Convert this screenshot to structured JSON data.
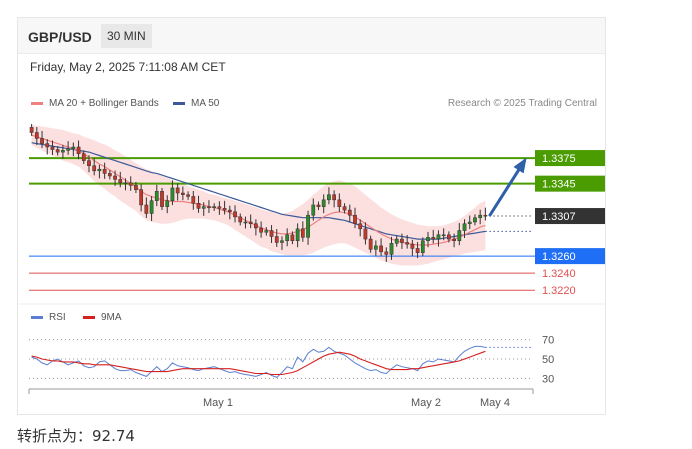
{
  "header": {
    "symbol": "GBP/USD",
    "timeframe": "30 MIN",
    "datetime": "Friday, May 2, 2025 7:11:08 AM CET",
    "credit": "Research © 2025 Trading Central"
  },
  "legend": {
    "ma20_label": "MA 20 + Bollinger Bands",
    "ma50_label": "MA 50",
    "rsi_label": "RSI",
    "rsi9_label": "9MA"
  },
  "colors": {
    "ma20": "#f08080",
    "ma50": "#3c5a99",
    "bands": "#fbd9d9",
    "candle_up": "#2a8c2a",
    "candle_down": "#c0392b",
    "resistance": "#4a9c00",
    "support": "#1e6ff5",
    "support_minor": "#e05050",
    "current": "#333333",
    "rsi": "#5b7fd0",
    "rsi9": "#d62020"
  },
  "footer": "转折点为：92.74",
  "chart_data": {
    "type": "candlestick",
    "price_axis_range": [
      1.3205,
      1.3422
    ],
    "levels": [
      {
        "value": 1.3375,
        "label": "1.3375",
        "kind": "resistance"
      },
      {
        "value": 1.3345,
        "label": "1.3345",
        "kind": "resistance"
      },
      {
        "value": 1.3307,
        "label": "1.3307",
        "kind": "current"
      },
      {
        "value": 1.326,
        "label": "1.3260",
        "kind": "support"
      },
      {
        "value": 1.324,
        "label": "1.3240",
        "kind": "support_minor"
      },
      {
        "value": 1.322,
        "label": "1.3220",
        "kind": "support_minor"
      }
    ],
    "x_ticks": [
      "May 1",
      "May 2",
      "May 4"
    ],
    "close": [
      1.3405,
      1.3398,
      1.3392,
      1.3388,
      1.3385,
      1.3382,
      1.3384,
      1.3386,
      1.3388,
      1.338,
      1.3372,
      1.3366,
      1.336,
      1.3362,
      1.3357,
      1.3354,
      1.335,
      1.3346,
      1.3346,
      1.3343,
      1.3338,
      1.332,
      1.331,
      1.3325,
      1.3336,
      1.3318,
      1.3325,
      1.334,
      1.3334,
      1.3332,
      1.333,
      1.3322,
      1.3316,
      1.3318,
      1.3317,
      1.3318,
      1.3316,
      1.3314,
      1.3312,
      1.3306,
      1.33,
      1.33,
      1.3298,
      1.3293,
      1.3288,
      1.329,
      1.3283,
      1.3276,
      1.3278,
      1.3285,
      1.3278,
      1.3292,
      1.3282,
      1.3308,
      1.332,
      1.3318,
      1.3326,
      1.3332,
      1.3326,
      1.3318,
      1.3314,
      1.3308,
      1.3298,
      1.3292,
      1.328,
      1.3268,
      1.3272,
      1.3265,
      1.3262,
      1.3275,
      1.328,
      1.3276,
      1.3274,
      1.3269,
      1.3264,
      1.3278,
      1.3282,
      1.328,
      1.3285,
      1.3285,
      1.328,
      1.3278,
      1.329,
      1.3298,
      1.33,
      1.3305,
      1.3308,
      1.3307
    ],
    "ma20": [
      1.3402,
      1.34,
      1.3398,
      1.3396,
      1.3394,
      1.3392,
      1.339,
      1.3388,
      1.3386,
      1.3384,
      1.338,
      1.3376,
      1.3372,
      1.3368,
      1.3365,
      1.3361,
      1.3357,
      1.3353,
      1.3349,
      1.3345,
      1.3341,
      1.3336,
      1.3332,
      1.333,
      1.3328,
      1.3326,
      1.3325,
      1.3324,
      1.3324,
      1.3324,
      1.3323,
      1.3322,
      1.3321,
      1.332,
      1.3318,
      1.3317,
      1.3315,
      1.3313,
      1.3311,
      1.3308,
      1.3305,
      1.3302,
      1.3299,
      1.3296,
      1.3293,
      1.3291,
      1.3289,
      1.3287,
      1.3286,
      1.3286,
      1.3287,
      1.3289,
      1.3291,
      1.3294,
      1.3298,
      1.3302,
      1.3306,
      1.3309,
      1.3311,
      1.3312,
      1.3311,
      1.3309,
      1.3306,
      1.3302,
      1.3298,
      1.3294,
      1.329,
      1.3286,
      1.3283,
      1.328,
      1.3278,
      1.3276,
      1.3275,
      1.3274,
      1.3273,
      1.3273,
      1.3273,
      1.3274,
      1.3275,
      1.3276,
      1.3278,
      1.328,
      1.3282,
      1.3285,
      1.3288,
      1.3291,
      1.3294,
      1.3296
    ],
    "ma50": [
      1.3393,
      1.3392,
      1.3391,
      1.339,
      1.3389,
      1.3388,
      1.3387,
      1.3386,
      1.3385,
      1.3384,
      1.3383,
      1.3382,
      1.338,
      1.3378,
      1.3376,
      1.3374,
      1.3372,
      1.337,
      1.3368,
      1.3366,
      1.3364,
      1.3362,
      1.336,
      1.3358,
      1.3357,
      1.3355,
      1.3353,
      1.3351,
      1.3349,
      1.3347,
      1.3345,
      1.3343,
      1.3341,
      1.3339,
      1.3337,
      1.3335,
      1.3333,
      1.3331,
      1.3329,
      1.3327,
      1.3325,
      1.3323,
      1.3321,
      1.3319,
      1.3317,
      1.3315,
      1.3313,
      1.3311,
      1.3309,
      1.3308,
      1.3307,
      1.3306,
      1.3305,
      1.3305,
      1.3305,
      1.3305,
      1.3305,
      1.3305,
      1.3304,
      1.3303,
      1.3302,
      1.33,
      1.3298,
      1.3296,
      1.3294,
      1.3292,
      1.329,
      1.3288,
      1.3286,
      1.3285,
      1.3284,
      1.3283,
      1.3282,
      1.3281,
      1.328,
      1.328,
      1.328,
      1.328,
      1.328,
      1.3281,
      1.3282,
      1.3283,
      1.3284,
      1.3285,
      1.3286,
      1.3287,
      1.3288,
      1.3289
    ],
    "band_width": [
      0.0012,
      0.0013,
      0.0014,
      0.0015,
      0.0016,
      0.0017,
      0.0018,
      0.0018,
      0.0018,
      0.0019,
      0.002,
      0.0022,
      0.0024,
      0.0025,
      0.0026,
      0.0027,
      0.0027,
      0.0028,
      0.0028,
      0.0028,
      0.0028,
      0.0029,
      0.003,
      0.003,
      0.0029,
      0.0028,
      0.0027,
      0.0025,
      0.0023,
      0.0021,
      0.0019,
      0.0018,
      0.0017,
      0.0016,
      0.0015,
      0.0015,
      0.0015,
      0.0015,
      0.0016,
      0.0017,
      0.0018,
      0.0019,
      0.002,
      0.0021,
      0.0022,
      0.0022,
      0.0023,
      0.0023,
      0.0024,
      0.0025,
      0.0026,
      0.0028,
      0.003,
      0.0032,
      0.0034,
      0.0035,
      0.0036,
      0.0037,
      0.0037,
      0.0037,
      0.0036,
      0.0036,
      0.0036,
      0.0035,
      0.0034,
      0.0033,
      0.0032,
      0.0031,
      0.003,
      0.0029,
      0.0028,
      0.0027,
      0.0026,
      0.0025,
      0.0024,
      0.0023,
      0.0022,
      0.0021,
      0.002,
      0.002,
      0.002,
      0.002,
      0.0021,
      0.0022,
      0.0024,
      0.0026,
      0.0028,
      0.0029
    ],
    "forecast": {
      "from": 1.3307,
      "to": 1.3375
    },
    "rsi": {
      "range": [
        20,
        80
      ],
      "ticks": [
        70,
        50,
        30
      ],
      "rsi": [
        52,
        50,
        46,
        44,
        48,
        50,
        47,
        44,
        46,
        48,
        43,
        41,
        42,
        47,
        48,
        44,
        40,
        38,
        38,
        39,
        36,
        34,
        32,
        37,
        42,
        37,
        40,
        46,
        43,
        42,
        41,
        39,
        38,
        40,
        41,
        42,
        40,
        38,
        36,
        37,
        35,
        34,
        33,
        32,
        34,
        36,
        33,
        31,
        36,
        42,
        40,
        52,
        47,
        56,
        60,
        57,
        58,
        62,
        58,
        56,
        54,
        50,
        46,
        43,
        40,
        38,
        39,
        36,
        35,
        40,
        44,
        42,
        41,
        40,
        38,
        45,
        48,
        47,
        50,
        49,
        48,
        47,
        53,
        58,
        61,
        63,
        63,
        62
      ],
      "ma9": [
        53,
        52,
        50,
        49,
        48,
        48,
        47,
        47,
        47,
        46,
        45,
        45,
        44,
        44,
        44,
        44,
        43,
        42,
        41,
        40,
        39,
        38,
        37,
        37,
        37,
        37,
        37,
        38,
        39,
        40,
        40,
        40,
        40,
        40,
        40,
        40,
        40,
        40,
        40,
        39,
        38,
        37,
        36,
        35,
        35,
        35,
        34,
        34,
        34,
        35,
        36,
        38,
        41,
        44,
        47,
        50,
        53,
        55,
        56,
        57,
        56,
        55,
        53,
        50,
        48,
        46,
        44,
        42,
        40,
        39,
        39,
        39,
        39,
        40,
        40,
        41,
        42,
        43,
        44,
        45,
        46,
        47,
        48,
        50,
        52,
        54,
        56,
        58
      ]
    }
  }
}
